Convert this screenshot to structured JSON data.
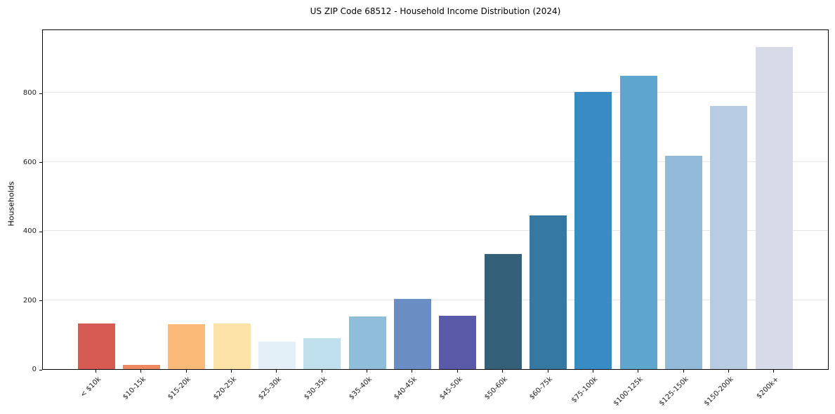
{
  "figure": {
    "background_color": "#ffffff",
    "spine_color": "#000000",
    "gridline_color": "#e5e5e8"
  },
  "chart_data": {
    "type": "bar",
    "title": "US ZIP Code 68512 - Household Income Distribution (2024)",
    "xlabel": "",
    "ylabel": "Households",
    "categories": [
      "< $10k",
      "$10-15k",
      "$15-20k",
      "$20-25k",
      "$25-30k",
      "$30-35k",
      "$35-40k",
      "$40-45k",
      "$45-50k",
      "$50-60k",
      "$60-75k",
      "$75-100k",
      "$100-125k",
      "$125-150k",
      "$150-200k",
      "$200k+"
    ],
    "values": [
      132,
      12,
      130,
      133,
      79,
      90,
      152,
      203,
      154,
      333,
      445,
      802,
      848,
      618,
      761,
      932
    ],
    "bar_colors": [
      "#d65c53",
      "#ed8a63",
      "#fbba77",
      "#fde3a7",
      "#e3f0f7",
      "#c0dfec",
      "#90bdda",
      "#6a8dc4",
      "#5a5aa8",
      "#35607a",
      "#3578a2",
      "#388bc3",
      "#5fa6cf",
      "#93bad9",
      "#b7cbe3",
      "#d7dae8"
    ],
    "yticks": [
      0,
      200,
      400,
      600,
      800
    ],
    "ylim": [
      0,
      985
    ],
    "grid": "horizontal",
    "legend": "none",
    "x_tick_rotation_deg": 45
  }
}
